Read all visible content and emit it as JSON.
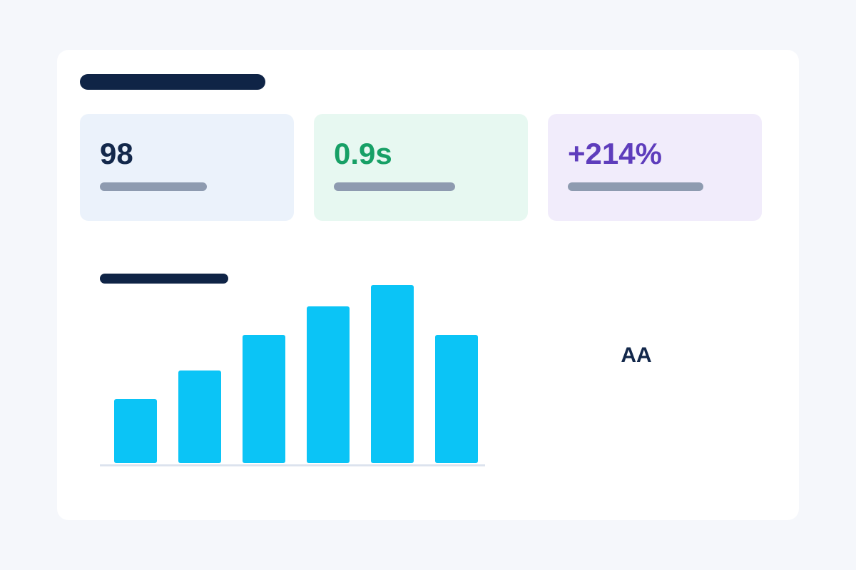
{
  "cards": [
    {
      "value": "98",
      "color": "#13284b"
    },
    {
      "value": "0.9s",
      "color": "#17a066"
    },
    {
      "value": "+214%",
      "color": "#5e3dbc"
    }
  ],
  "chart_data": {
    "type": "bar",
    "values": [
      90,
      130,
      180,
      220,
      250,
      180
    ],
    "color": "#0bc4f6",
    "ylim": [
      0,
      250
    ]
  },
  "badge": "AA"
}
